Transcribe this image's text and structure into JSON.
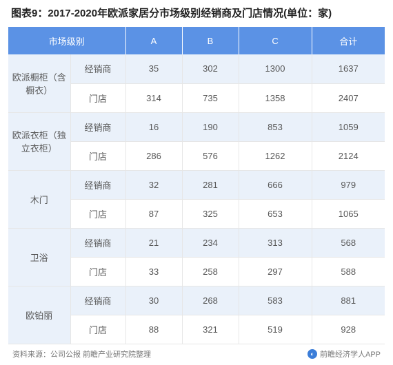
{
  "title": "图表9：2017-2020年欧派家居分市场级别经销商及门店情况(单位：家)",
  "table": {
    "type": "table",
    "header_bg": "#5b92e5",
    "header_fg": "#ffffff",
    "row_alt_bg": "#eaf1fa",
    "row_norm_bg": "#ffffff",
    "border_color": "#e6e6e6",
    "text_color": "#575757",
    "columns": {
      "cat": "市场级别",
      "a": "A",
      "b": "B",
      "c": "C",
      "total": "合计"
    },
    "type_labels": {
      "dealer": "经销商",
      "store": "门店"
    },
    "categories": [
      {
        "name": "欧派橱柜（含橱衣）",
        "dealer": {
          "a": 35,
          "b": 302,
          "c": 1300,
          "total": 1637
        },
        "store": {
          "a": 314,
          "b": 735,
          "c": 1358,
          "total": 2407
        }
      },
      {
        "name": "欧派衣柜（独立衣柜）",
        "dealer": {
          "a": 16,
          "b": 190,
          "c": 853,
          "total": 1059
        },
        "store": {
          "a": 286,
          "b": 576,
          "c": 1262,
          "total": 2124
        }
      },
      {
        "name": "木门",
        "dealer": {
          "a": 32,
          "b": 281,
          "c": 666,
          "total": 979
        },
        "store": {
          "a": 87,
          "b": 325,
          "c": 653,
          "total": 1065
        }
      },
      {
        "name": "卫浴",
        "dealer": {
          "a": 21,
          "b": 234,
          "c": 313,
          "total": 568
        },
        "store": {
          "a": 33,
          "b": 258,
          "c": 297,
          "total": 588
        }
      },
      {
        "name": "欧铂丽",
        "dealer": {
          "a": 30,
          "b": 268,
          "c": 583,
          "total": 881
        },
        "store": {
          "a": 88,
          "b": 321,
          "c": 519,
          "total": 928
        }
      }
    ]
  },
  "footer": {
    "source": "资料来源：公司公报 前瞻产业研究院整理",
    "brand": "前瞻经济学人APP"
  }
}
